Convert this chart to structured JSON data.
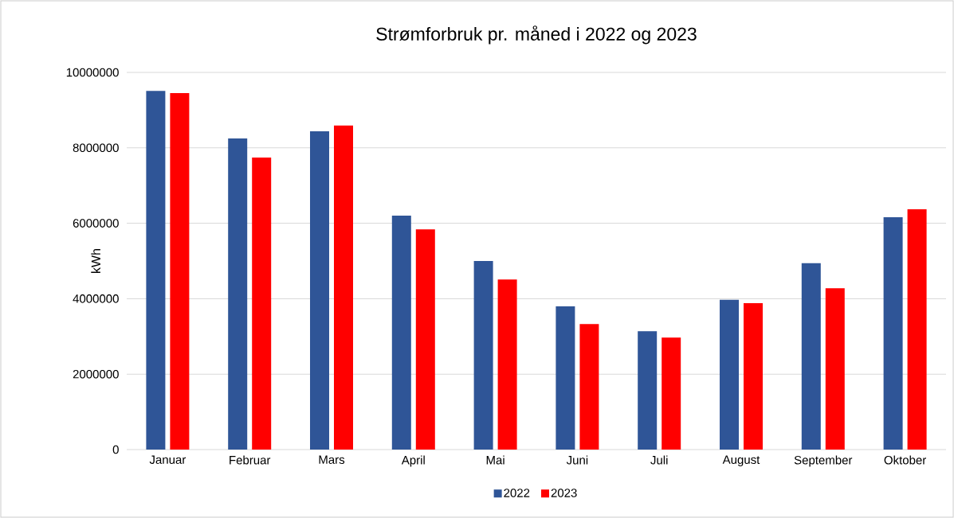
{
  "chart_data": {
    "type": "bar",
    "title": "Strømforbruk pr. måned i 2022 og 2023",
    "ylabel": "kWh",
    "categories": [
      "Januar",
      "Februar",
      "Mars",
      "April",
      "Mai",
      "Juni",
      "Juli",
      "August",
      "September",
      "Oktober"
    ],
    "series": [
      {
        "name": "2022",
        "color": "#2f5597",
        "values": [
          9510000,
          8250000,
          8440000,
          6200000,
          5000000,
          3800000,
          3140000,
          3970000,
          4940000,
          6160000
        ]
      },
      {
        "name": "2023",
        "color": "#ff0000",
        "values": [
          9450000,
          7740000,
          8590000,
          5840000,
          4510000,
          3330000,
          2970000,
          3880000,
          4280000,
          6370000
        ]
      }
    ],
    "ylim": [
      0,
      10000000
    ],
    "yticks": [
      0,
      2000000,
      4000000,
      6000000,
      8000000,
      10000000
    ],
    "grid": "y",
    "legend": "bottom"
  }
}
